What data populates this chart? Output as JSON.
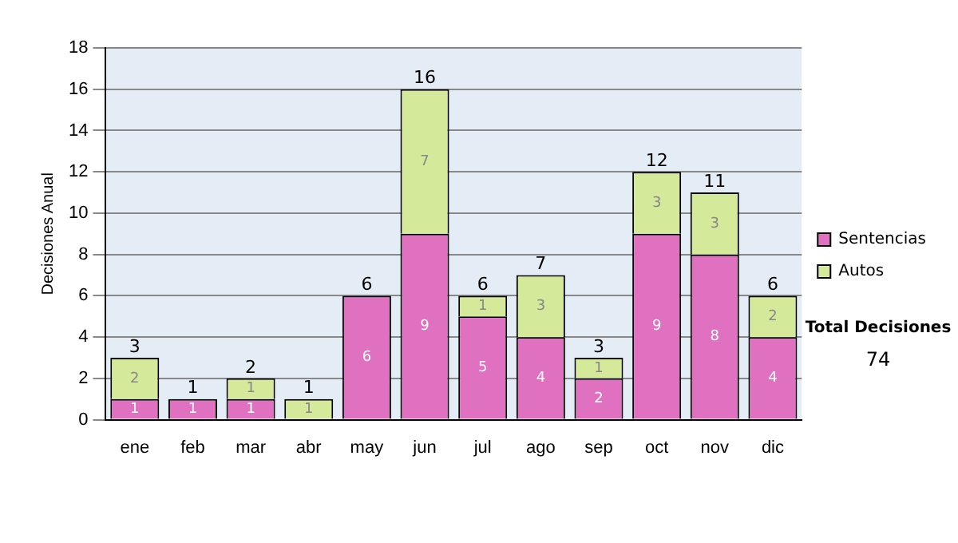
{
  "chart_data": {
    "type": "bar",
    "stacked": true,
    "ylabel": "Decisiones Anual",
    "categories": [
      "ene",
      "feb",
      "mar",
      "abr",
      "may",
      "jun",
      "jul",
      "ago",
      "sep",
      "oct",
      "nov",
      "dic"
    ],
    "series": [
      {
        "name": "Sentencias",
        "color": "#e070c0",
        "values": [
          1,
          1,
          1,
          0,
          6,
          9,
          5,
          4,
          2,
          9,
          8,
          4
        ],
        "value_labels": [
          "1",
          "1",
          "1",
          null,
          "6",
          "9",
          "5",
          "4",
          "2",
          "9",
          "8",
          "4"
        ]
      },
      {
        "name": "Autos",
        "color": "#d4ea9a",
        "values": [
          2,
          0,
          1,
          1,
          0,
          7,
          1,
          3,
          1,
          3,
          3,
          2
        ],
        "value_labels": [
          "2",
          null,
          "1",
          "1",
          null,
          "7",
          "1",
          "3",
          "1",
          "3",
          "3",
          "2"
        ]
      }
    ],
    "totals": [
      "3",
      "1",
      "2",
      "1",
      "6",
      "16",
      "6",
      "7",
      "3",
      "12",
      "11",
      "6"
    ],
    "ylim": [
      0,
      18
    ],
    "yticks": [
      0,
      2,
      4,
      6,
      8,
      10,
      12,
      14,
      16,
      18
    ],
    "grid": "y",
    "legend": "right",
    "annotations": [
      "Total Decisiones",
      "74"
    ]
  }
}
